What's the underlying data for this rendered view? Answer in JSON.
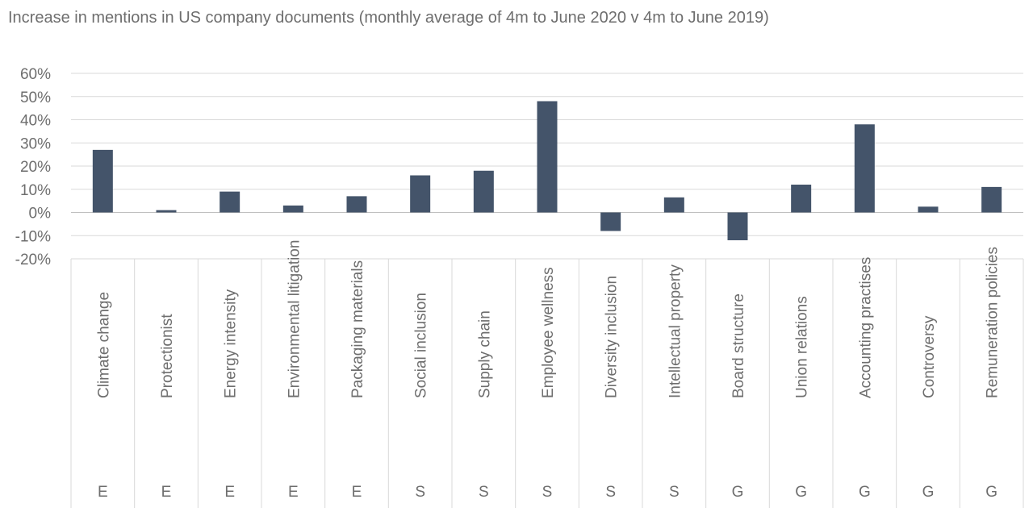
{
  "chart_data": {
    "type": "bar",
    "title": "Increase in mentions in US company documents (monthly average of 4m to June 2020 v 4m to June 2019)",
    "categories": [
      "Climate change",
      "Protectionist",
      "Energy intensity",
      "Environmental litigation",
      "Packaging materials",
      "Social inclusion",
      "Supply chain",
      "Employee wellness",
      "Diversity inclusion",
      "Intellectual property",
      "Board structure",
      "Union relations",
      "Accounting practises",
      "Controversy",
      "Remuneration policies"
    ],
    "groups": [
      "E",
      "E",
      "E",
      "E",
      "E",
      "S",
      "S",
      "S",
      "S",
      "S",
      "G",
      "G",
      "G",
      "G",
      "G"
    ],
    "values": [
      27,
      1,
      9,
      3,
      7,
      16,
      18,
      48,
      -8,
      6.5,
      -12,
      12,
      38,
      2.5,
      11
    ],
    "yticks": [
      "60%",
      "50%",
      "40%",
      "30%",
      "20%",
      "10%",
      "0%",
      "-10%",
      "-20%"
    ],
    "ylim": [
      -20,
      60
    ],
    "bar_color": "#44546a",
    "grid": true
  }
}
